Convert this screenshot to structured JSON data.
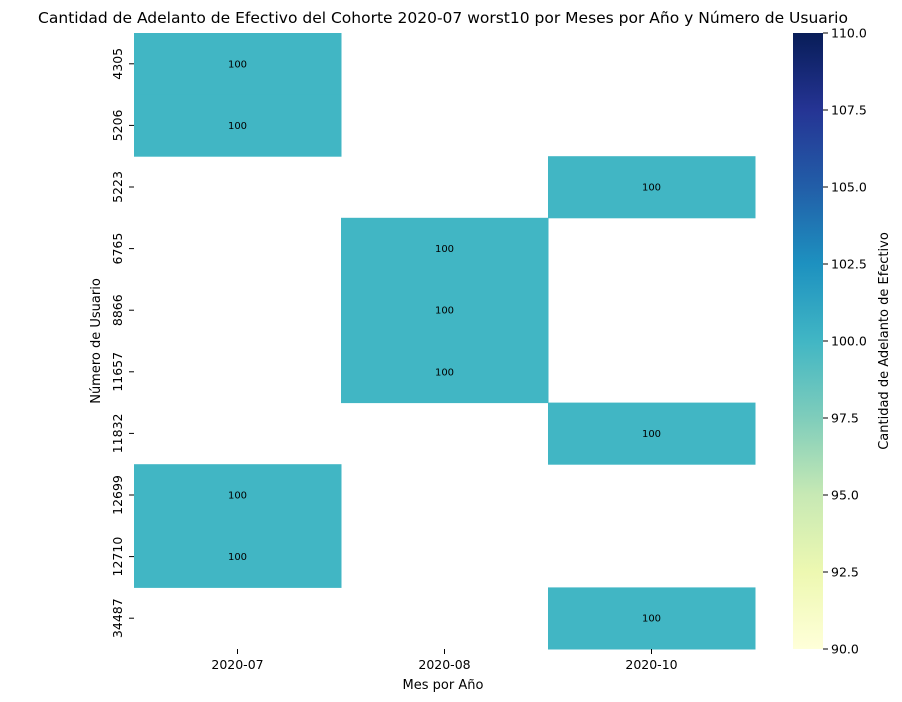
{
  "chart_data": {
    "type": "heatmap",
    "title": "Cantidad de Adelanto de Efectivo del Cohorte 2020-07 worst10 por Meses por Año y Número de Usuario",
    "xlabel": "Mes por Año",
    "ylabel": "Número de Usuario",
    "x_categories": [
      "2020-07",
      "2020-08",
      "2020-10"
    ],
    "y_categories": [
      "4305",
      "5206",
      "5223",
      "6765",
      "8866",
      "11657",
      "11832",
      "12699",
      "12710",
      "34487"
    ],
    "values": [
      [
        100,
        null,
        null
      ],
      [
        100,
        null,
        null
      ],
      [
        null,
        null,
        100
      ],
      [
        null,
        100,
        null
      ],
      [
        null,
        100,
        null
      ],
      [
        null,
        100,
        null
      ],
      [
        null,
        null,
        100
      ],
      [
        100,
        null,
        null
      ],
      [
        100,
        null,
        null
      ],
      [
        null,
        null,
        100
      ]
    ],
    "colorbar": {
      "label": "Cantidad de Adelanto de Efectivo",
      "min": 90.0,
      "max": 110.0,
      "ticks": [
        "90.0",
        "92.5",
        "95.0",
        "97.5",
        "100.0",
        "102.5",
        "105.0",
        "107.5",
        "110.0"
      ],
      "colormap": "YlGnBu",
      "colors": [
        "#ffffd9",
        "#edf8b1",
        "#c7e9b4",
        "#7fcdbb",
        "#41b6c4",
        "#1d91c0",
        "#225ea8",
        "#253494",
        "#081d58"
      ]
    },
    "cell_color": "#41b6c4",
    "annotation_color": "#ffffff"
  }
}
